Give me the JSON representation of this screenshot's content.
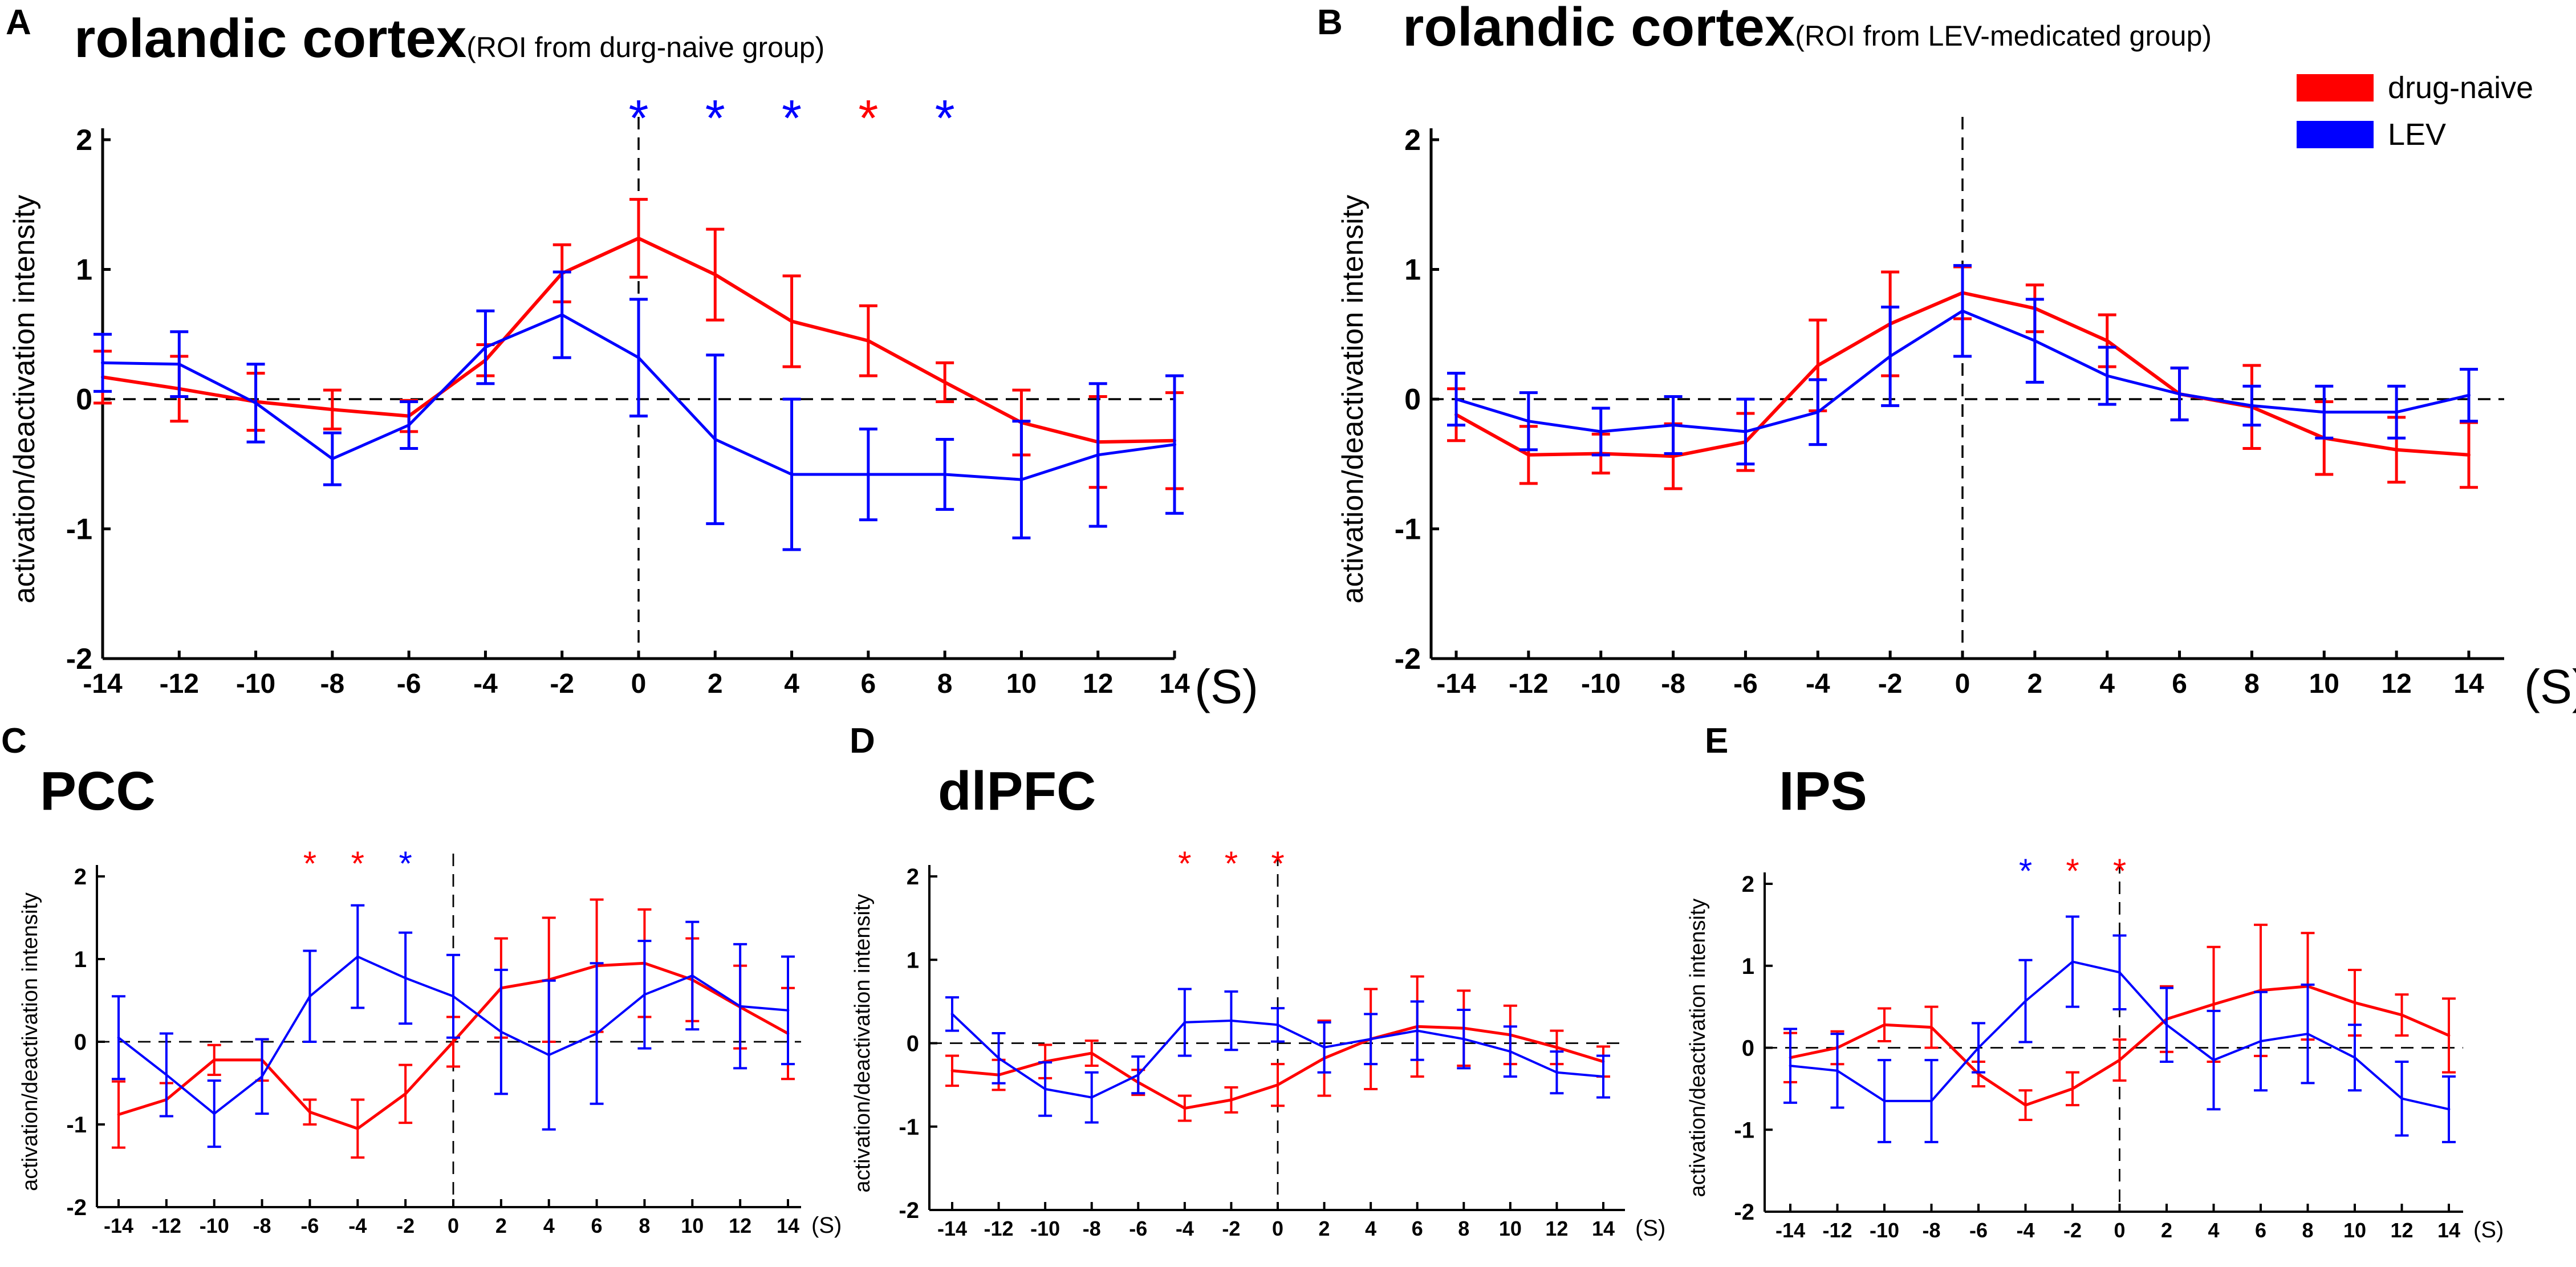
{
  "colors": {
    "drug_naive": "#ff0000",
    "lev": "#0000ff",
    "axis": "#000000"
  },
  "legend": [
    {
      "label": "drug-naive",
      "color": "#ff0000"
    },
    {
      "label": "LEV",
      "color": "#0000ff"
    }
  ],
  "chart_data": [
    {
      "panel": "A",
      "title": "rolandic cortex",
      "subtitle": "(ROI from durg-naive group)",
      "type": "line",
      "ylabel": "activation/deactivation intensity",
      "xunit": "(S)",
      "xlim": [
        -14,
        14
      ],
      "ylim": [
        -2,
        2
      ],
      "x": [
        -14,
        -12,
        -10,
        -8,
        -6,
        -4,
        -2,
        0,
        2,
        4,
        6,
        8,
        10,
        12,
        14
      ],
      "yticks": [
        -2,
        -1,
        0,
        1,
        2
      ],
      "series": [
        {
          "name": "drug-naive",
          "color": "#ff0000",
          "values": [
            0.17,
            0.08,
            -0.02,
            -0.08,
            -0.13,
            0.3,
            0.97,
            1.24,
            0.96,
            0.6,
            0.45,
            0.13,
            -0.18,
            -0.33,
            -0.32
          ],
          "errors": [
            0.2,
            0.25,
            0.22,
            0.15,
            0.12,
            0.12,
            0.22,
            0.3,
            0.35,
            0.35,
            0.27,
            0.15,
            0.25,
            0.35,
            0.37
          ]
        },
        {
          "name": "LEV",
          "color": "#0000ff",
          "values": [
            0.28,
            0.27,
            -0.03,
            -0.46,
            -0.2,
            0.4,
            0.65,
            0.32,
            -0.31,
            -0.58,
            -0.58,
            -0.58,
            -0.62,
            -0.43,
            -0.35
          ],
          "errors": [
            0.22,
            0.25,
            0.3,
            0.2,
            0.18,
            0.28,
            0.33,
            0.45,
            0.65,
            0.58,
            0.35,
            0.27,
            0.45,
            0.55,
            0.53
          ]
        }
      ],
      "annotations": [
        {
          "x": 0,
          "symbol": "*",
          "color": "#0000ff"
        },
        {
          "x": 2,
          "symbol": "*",
          "color": "#0000ff"
        },
        {
          "x": 4,
          "symbol": "*",
          "color": "#0000ff"
        },
        {
          "x": 6,
          "symbol": "*",
          "color": "#ff0000"
        },
        {
          "x": 8,
          "symbol": "*",
          "color": "#0000ff"
        }
      ]
    },
    {
      "panel": "B",
      "title": "rolandic cortex",
      "subtitle": "(ROI from LEV-medicated group)",
      "type": "line",
      "ylabel": "activation/deactivation intensity",
      "xunit": "(S)",
      "xlim": [
        -14,
        14
      ],
      "ylim": [
        -2,
        2
      ],
      "x": [
        -14,
        -12,
        -10,
        -8,
        -6,
        -4,
        -2,
        0,
        2,
        4,
        6,
        8,
        10,
        12,
        14
      ],
      "yticks": [
        -2,
        -1,
        0,
        1,
        2
      ],
      "series": [
        {
          "name": "drug-naive",
          "color": "#ff0000",
          "values": [
            -0.12,
            -0.43,
            -0.42,
            -0.44,
            -0.33,
            0.26,
            0.58,
            0.82,
            0.7,
            0.45,
            0.04,
            -0.06,
            -0.3,
            -0.39,
            -0.43
          ],
          "errors": [
            0.2,
            0.22,
            0.15,
            0.25,
            0.22,
            0.35,
            0.4,
            0.2,
            0.18,
            0.2,
            0.2,
            0.32,
            0.28,
            0.25,
            0.25
          ]
        },
        {
          "name": "LEV",
          "color": "#0000ff",
          "values": [
            0.0,
            -0.17,
            -0.25,
            -0.2,
            -0.25,
            -0.1,
            0.33,
            0.68,
            0.45,
            0.18,
            0.04,
            -0.05,
            -0.1,
            -0.1,
            0.03
          ],
          "errors": [
            0.2,
            0.22,
            0.18,
            0.22,
            0.25,
            0.25,
            0.38,
            0.35,
            0.32,
            0.22,
            0.2,
            0.15,
            0.2,
            0.2,
            0.2
          ]
        }
      ],
      "annotations": []
    },
    {
      "panel": "C",
      "title": "PCC",
      "subtitle": "",
      "type": "line",
      "ylabel": "activation/deactivation intensity",
      "xunit": "(S)",
      "xlim": [
        -14,
        14
      ],
      "ylim": [
        -2,
        2
      ],
      "x": [
        -14,
        -12,
        -10,
        -8,
        -6,
        -4,
        -2,
        0,
        2,
        4,
        6,
        8,
        10,
        12,
        14
      ],
      "yticks": [
        -2,
        -1,
        0,
        1,
        2
      ],
      "series": [
        {
          "name": "drug-naive",
          "color": "#ff0000",
          "values": [
            -0.88,
            -0.7,
            -0.22,
            -0.22,
            -0.85,
            -1.05,
            -0.63,
            0.0,
            0.65,
            0.75,
            0.92,
            0.95,
            0.75,
            0.42,
            0.1
          ],
          "errors": [
            0.4,
            0.2,
            0.18,
            0.25,
            0.15,
            0.35,
            0.35,
            0.3,
            0.6,
            0.75,
            0.8,
            0.65,
            0.5,
            0.5,
            0.55
          ]
        },
        {
          "name": "LEV",
          "color": "#0000ff",
          "values": [
            0.05,
            -0.4,
            -0.87,
            -0.42,
            0.55,
            1.03,
            0.77,
            0.55,
            0.12,
            -0.16,
            0.1,
            0.57,
            0.8,
            0.43,
            0.38
          ],
          "errors": [
            0.5,
            0.5,
            0.4,
            0.45,
            0.55,
            0.62,
            0.55,
            0.5,
            0.75,
            0.9,
            0.85,
            0.65,
            0.65,
            0.75,
            0.65
          ]
        }
      ],
      "annotations": [
        {
          "x": -6,
          "symbol": "*",
          "color": "#ff0000"
        },
        {
          "x": -4,
          "symbol": "*",
          "color": "#ff0000"
        },
        {
          "x": -2,
          "symbol": "*",
          "color": "#0000ff"
        }
      ]
    },
    {
      "panel": "D",
      "title": "dlPFC",
      "subtitle": "",
      "type": "line",
      "ylabel": "activation/deactivation intensity",
      "xunit": "(S)",
      "xlim": [
        -14,
        14
      ],
      "ylim": [
        -2,
        2
      ],
      "x": [
        -14,
        -12,
        -10,
        -8,
        -6,
        -4,
        -2,
        0,
        2,
        4,
        6,
        8,
        10,
        12,
        14
      ],
      "yticks": [
        -2,
        -1,
        0,
        1,
        2
      ],
      "series": [
        {
          "name": "drug-naive",
          "color": "#ff0000",
          "values": [
            -0.33,
            -0.38,
            -0.22,
            -0.12,
            -0.47,
            -0.78,
            -0.68,
            -0.5,
            -0.18,
            0.05,
            0.2,
            0.18,
            0.1,
            -0.05,
            -0.22
          ],
          "errors": [
            0.18,
            0.18,
            0.2,
            0.15,
            0.15,
            0.15,
            0.15,
            0.25,
            0.45,
            0.6,
            0.6,
            0.45,
            0.35,
            0.2,
            0.18
          ]
        },
        {
          "name": "LEV",
          "color": "#0000ff",
          "values": [
            0.35,
            -0.18,
            -0.55,
            -0.65,
            -0.38,
            0.25,
            0.27,
            0.22,
            -0.05,
            0.05,
            0.15,
            0.05,
            -0.1,
            -0.35,
            -0.4
          ],
          "errors": [
            0.2,
            0.3,
            0.32,
            0.3,
            0.22,
            0.4,
            0.35,
            0.2,
            0.3,
            0.3,
            0.35,
            0.35,
            0.3,
            0.25,
            0.25
          ]
        }
      ],
      "annotations": [
        {
          "x": -4,
          "symbol": "*",
          "color": "#ff0000"
        },
        {
          "x": -2,
          "symbol": "*",
          "color": "#ff0000"
        },
        {
          "x": 0,
          "symbol": "*",
          "color": "#ff0000"
        }
      ]
    },
    {
      "panel": "E",
      "title": "IPS",
      "subtitle": "",
      "type": "line",
      "ylabel": "activation/deactivation intensity",
      "xunit": "(S)",
      "xlim": [
        -14,
        14
      ],
      "ylim": [
        -2,
        2
      ],
      "x": [
        -14,
        -12,
        -10,
        -8,
        -6,
        -4,
        -2,
        0,
        2,
        4,
        6,
        8,
        10,
        12,
        14
      ],
      "yticks": [
        -2,
        -1,
        0,
        1,
        2
      ],
      "series": [
        {
          "name": "drug-naive",
          "color": "#ff0000",
          "values": [
            -0.12,
            0.0,
            0.28,
            0.25,
            -0.32,
            -0.7,
            -0.5,
            -0.15,
            0.35,
            0.53,
            0.7,
            0.75,
            0.55,
            0.4,
            0.15
          ],
          "errors": [
            0.3,
            0.2,
            0.2,
            0.25,
            0.15,
            0.18,
            0.2,
            0.25,
            0.4,
            0.7,
            0.8,
            0.65,
            0.4,
            0.25,
            0.45
          ]
        },
        {
          "name": "LEV",
          "color": "#0000ff",
          "values": [
            -0.22,
            -0.28,
            -0.65,
            -0.65,
            0.0,
            0.57,
            1.05,
            0.92,
            0.28,
            -0.15,
            0.08,
            0.17,
            -0.12,
            -0.62,
            -0.75
          ],
          "errors": [
            0.45,
            0.45,
            0.5,
            0.5,
            0.3,
            0.5,
            0.55,
            0.45,
            0.45,
            0.6,
            0.6,
            0.6,
            0.4,
            0.45,
            0.4
          ]
        }
      ],
      "annotations": [
        {
          "x": -4,
          "symbol": "*",
          "color": "#0000ff"
        },
        {
          "x": -2,
          "symbol": "*",
          "color": "#ff0000"
        },
        {
          "x": 0,
          "symbol": "*",
          "color": "#ff0000"
        }
      ]
    }
  ]
}
